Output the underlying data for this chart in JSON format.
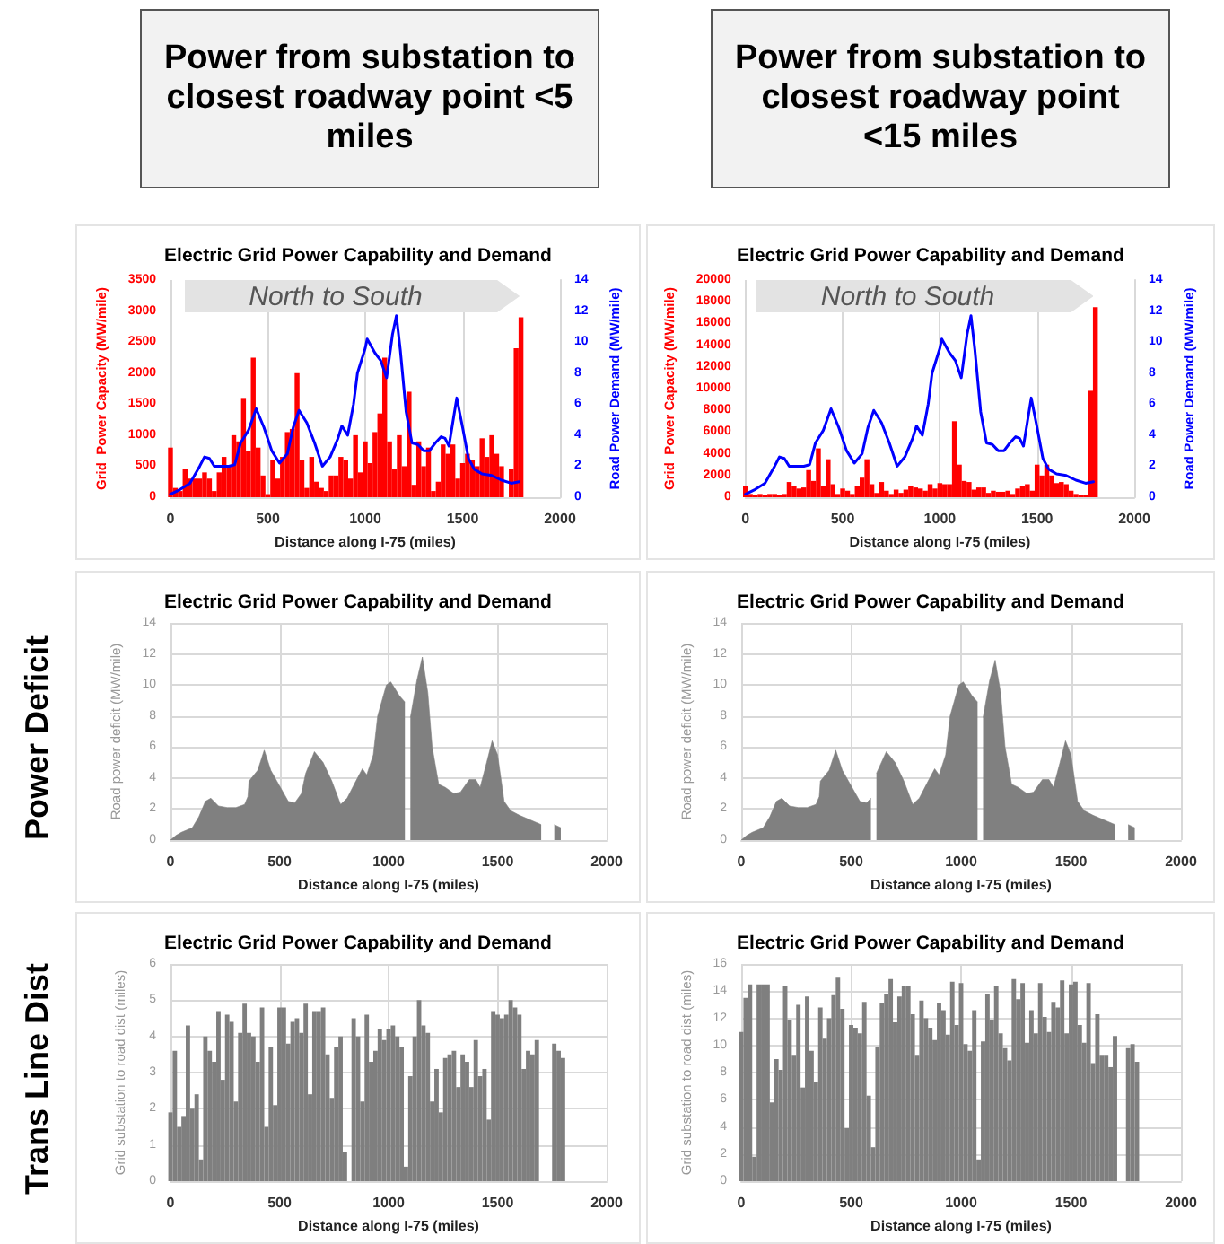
{
  "chart_data": [
    {
      "type": "bar",
      "title": "Electric Grid Power Capability and Demand",
      "subtitle": "Power from substation to closest roadway point <5 miles",
      "xlabel": "Distance along I-75 (miles)",
      "ylabel": "Grid  Power Capacity (MW/mile)",
      "y2label": "Road Power Demand (MW/mile)",
      "annotations": [
        "North to South"
      ],
      "xlim": [
        0,
        2000
      ],
      "xticks": [
        0,
        500,
        1000,
        1500,
        2000
      ],
      "ylim": [
        0,
        3500
      ],
      "yticks": [
        0,
        500,
        1000,
        1500,
        2000,
        2500,
        3000,
        3500
      ],
      "y2lim": [
        0,
        14
      ],
      "y2ticks": [
        0,
        2,
        4,
        6,
        8,
        10,
        12,
        14
      ],
      "grid": "x",
      "series": [
        {
          "color": "#ff0000",
          "x": [
            0,
            25,
            50,
            75,
            100,
            125,
            150,
            175,
            200,
            225,
            250,
            275,
            300,
            325,
            350,
            375,
            400,
            425,
            450,
            475,
            500,
            525,
            550,
            575,
            600,
            625,
            650,
            675,
            700,
            725,
            750,
            775,
            800,
            825,
            850,
            875,
            900,
            925,
            950,
            975,
            1000,
            1025,
            1050,
            1075,
            1100,
            1125,
            1150,
            1175,
            1200,
            1225,
            1250,
            1275,
            1300,
            1325,
            1350,
            1375,
            1400,
            1425,
            1450,
            1475,
            1500,
            1525,
            1550,
            1575,
            1600,
            1625,
            1650,
            1675,
            1700,
            1725,
            1750,
            1775,
            1800
          ],
          "values": [
            800,
            150,
            100,
            450,
            300,
            300,
            300,
            400,
            300,
            100,
            400,
            650,
            500,
            1000,
            900,
            1600,
            750,
            2250,
            800,
            350,
            50,
            600,
            300,
            650,
            1050,
            1100,
            2000,
            600,
            150,
            650,
            250,
            150,
            100,
            350,
            350,
            650,
            600,
            300,
            1000,
            400,
            900,
            550,
            1050,
            1350,
            2250,
            900,
            450,
            1000,
            500,
            1700,
            200,
            900,
            500,
            800,
            100,
            250,
            850,
            700,
            850,
            300,
            550,
            700,
            600,
            500,
            950,
            650,
            1000,
            700,
            500,
            0,
            450,
            2400,
            2900
          ]
        },
        {
          "type": "line",
          "axis": "y2",
          "color": "#0000ff",
          "x": [
            0,
            50,
            100,
            150,
            175,
            200,
            225,
            300,
            330,
            360,
            400,
            440,
            480,
            520,
            560,
            600,
            630,
            660,
            700,
            740,
            780,
            820,
            860,
            880,
            910,
            940,
            960,
            1000,
            1010,
            1050,
            1080,
            1110,
            1140,
            1160,
            1180,
            1210,
            1240,
            1270,
            1300,
            1330,
            1360,
            1390,
            1410,
            1430,
            1470,
            1500,
            1530,
            1560,
            1600,
            1650,
            1700,
            1750,
            1790
          ],
          "values": [
            0.2,
            0.5,
            0.9,
            2.0,
            2.6,
            2.5,
            2.0,
            2.0,
            2.1,
            3.5,
            4.3,
            5.7,
            4.5,
            3.0,
            2.2,
            2.8,
            4.5,
            5.6,
            4.8,
            3.5,
            2.0,
            2.6,
            3.8,
            4.6,
            4.0,
            6.0,
            8.0,
            9.6,
            10.2,
            9.3,
            8.8,
            7.7,
            10.5,
            11.7,
            9.5,
            5.5,
            3.5,
            3.4,
            3.0,
            3.0,
            3.5,
            3.9,
            3.8,
            3.3,
            6.4,
            4.5,
            2.5,
            1.8,
            1.5,
            1.4,
            1.1,
            0.9,
            1.0
          ]
        }
      ]
    },
    {
      "type": "bar",
      "title": "Electric Grid Power Capability and Demand",
      "subtitle": "Power from substation to closest roadway point <15 miles",
      "xlabel": "Distance along I-75 (miles)",
      "ylabel": "Grid  Power Capacity (MW/mile)",
      "y2label": "Road Power Demand (MW/mile)",
      "annotations": [
        "North to South"
      ],
      "xlim": [
        0,
        2000
      ],
      "xticks": [
        0,
        500,
        1000,
        1500,
        2000
      ],
      "ylim": [
        0,
        20000
      ],
      "yticks": [
        0,
        2000,
        4000,
        6000,
        8000,
        10000,
        12000,
        14000,
        16000,
        18000,
        20000
      ],
      "y2lim": [
        0,
        14
      ],
      "y2ticks": [
        0,
        2,
        4,
        6,
        8,
        10,
        12,
        14
      ],
      "grid": "x",
      "series": [
        {
          "color": "#ff0000",
          "x": [
            0,
            25,
            50,
            75,
            100,
            125,
            150,
            175,
            200,
            225,
            250,
            275,
            300,
            325,
            350,
            375,
            400,
            425,
            450,
            475,
            500,
            525,
            550,
            575,
            600,
            625,
            650,
            675,
            700,
            725,
            750,
            775,
            800,
            825,
            850,
            875,
            900,
            925,
            950,
            975,
            1000,
            1025,
            1050,
            1075,
            1100,
            1125,
            1150,
            1175,
            1200,
            1225,
            1250,
            1275,
            1300,
            1325,
            1350,
            1375,
            1400,
            1425,
            1450,
            1475,
            1500,
            1525,
            1550,
            1575,
            1600,
            1625,
            1650,
            1675,
            1700,
            1725,
            1750,
            1775,
            1800
          ],
          "values": [
            1000,
            300,
            200,
            300,
            200,
            300,
            300,
            200,
            300,
            1400,
            1000,
            800,
            900,
            2500,
            1500,
            4500,
            1000,
            3500,
            1200,
            300,
            800,
            600,
            300,
            1000,
            1800,
            3500,
            1200,
            400,
            1400,
            600,
            300,
            700,
            400,
            700,
            1000,
            900,
            800,
            600,
            1200,
            800,
            1300,
            1200,
            1200,
            7000,
            3000,
            1500,
            1400,
            700,
            900,
            900,
            400,
            600,
            500,
            500,
            600,
            300,
            800,
            1000,
            1200,
            600,
            3000,
            2000,
            3000,
            2000,
            1300,
            1400,
            1200,
            600,
            300,
            200,
            200,
            9800,
            17500
          ]
        },
        {
          "type": "line",
          "axis": "y2",
          "color": "#0000ff",
          "x": [
            0,
            50,
            100,
            150,
            175,
            200,
            225,
            300,
            330,
            360,
            400,
            440,
            480,
            520,
            560,
            600,
            630,
            660,
            700,
            740,
            780,
            820,
            860,
            880,
            910,
            940,
            960,
            1000,
            1010,
            1050,
            1080,
            1110,
            1140,
            1160,
            1180,
            1210,
            1240,
            1270,
            1300,
            1330,
            1360,
            1390,
            1410,
            1430,
            1470,
            1500,
            1530,
            1560,
            1600,
            1650,
            1700,
            1750,
            1790
          ],
          "values": [
            0.2,
            0.5,
            0.9,
            2.0,
            2.6,
            2.5,
            2.0,
            2.0,
            2.1,
            3.5,
            4.3,
            5.7,
            4.5,
            3.0,
            2.2,
            2.8,
            4.5,
            5.6,
            4.8,
            3.5,
            2.0,
            2.6,
            3.8,
            4.6,
            4.0,
            6.0,
            8.0,
            9.6,
            10.2,
            9.3,
            8.8,
            7.7,
            10.5,
            11.7,
            9.5,
            5.5,
            3.5,
            3.4,
            3.0,
            3.0,
            3.5,
            3.9,
            3.8,
            3.3,
            6.4,
            4.5,
            2.5,
            1.8,
            1.5,
            1.4,
            1.1,
            0.9,
            1.0
          ]
        }
      ]
    },
    {
      "type": "area",
      "title": "Electric Grid Power Capability and Demand",
      "xlabel": "Distance along I-75 (miles)",
      "ylabel": "Road power deficit (MW/mile)",
      "annotations": [
        "Power Deficit"
      ],
      "xlim": [
        0,
        2000
      ],
      "xticks": [
        0,
        500,
        1000,
        1500,
        2000
      ],
      "ylim": [
        0,
        14
      ],
      "yticks": [
        0,
        2,
        4,
        6,
        8,
        10,
        12,
        14
      ],
      "grid": true,
      "series": [
        {
          "color": "#808080",
          "x": [
            0,
            25,
            50,
            100,
            130,
            160,
            185,
            220,
            260,
            300,
            340,
            355,
            360,
            400,
            430,
            460,
            500,
            540,
            570,
            600,
            620,
            660,
            700,
            740,
            780,
            810,
            850,
            880,
            900,
            930,
            950,
            990,
            1010,
            1050,
            1075,
            1090,
            1100,
            1130,
            1155,
            1180,
            1200,
            1230,
            1260,
            1300,
            1330,
            1370,
            1400,
            1420,
            1450,
            1475,
            1500,
            1530,
            1560,
            1600,
            1650,
            1700
          ],
          "values": [
            0,
            0.3,
            0.5,
            0.8,
            1.5,
            2.5,
            2.7,
            2.2,
            2.1,
            2.1,
            2.3,
            2.8,
            3.8,
            4.5,
            5.8,
            4.5,
            3.5,
            2.5,
            2.4,
            3.0,
            4.3,
            5.7,
            5.0,
            3.8,
            2.3,
            2.7,
            3.8,
            4.6,
            4.2,
            5.5,
            8.0,
            10.0,
            10.2,
            9.3,
            8.9,
            null,
            7.9,
            10.3,
            11.8,
            9.5,
            6.0,
            3.6,
            3.4,
            3.0,
            3.1,
            3.9,
            3.9,
            3.4,
            5.0,
            6.4,
            5.5,
            2.5,
            1.9,
            1.6,
            1.3,
            1.0
          ]
        },
        {
          "color": "#808080",
          "x": [
            1760,
            1790
          ],
          "values": [
            1.0,
            0.8
          ]
        }
      ]
    },
    {
      "type": "area",
      "title": "Electric Grid Power Capability and Demand",
      "xlabel": "Distance along I-75 (miles)",
      "ylabel": "Road power deficit (MW/mile)",
      "xlim": [
        0,
        2000
      ],
      "xticks": [
        0,
        500,
        1000,
        1500,
        2000
      ],
      "ylim": [
        0,
        14
      ],
      "yticks": [
        0,
        2,
        4,
        6,
        8,
        10,
        12,
        14
      ],
      "grid": true,
      "series": [
        {
          "color": "#808080",
          "x": [
            0,
            25,
            50,
            100,
            130,
            160,
            185,
            220,
            260,
            300,
            340,
            355,
            360,
            400,
            430,
            460,
            500,
            540,
            570,
            590,
            600,
            615,
            660,
            700,
            740,
            780,
            810,
            850,
            880,
            900,
            930,
            950,
            990,
            1010,
            1050,
            1075,
            1090,
            1100,
            1130,
            1155,
            1180,
            1200,
            1230,
            1260,
            1300,
            1330,
            1370,
            1400,
            1420,
            1450,
            1475,
            1500,
            1530,
            1560,
            1600,
            1650,
            1700
          ],
          "values": [
            0,
            0.3,
            0.5,
            0.8,
            1.5,
            2.5,
            2.7,
            2.2,
            2.1,
            2.1,
            2.3,
            2.8,
            3.8,
            4.5,
            5.8,
            4.5,
            3.5,
            2.5,
            2.4,
            2.7,
            null,
            4.3,
            5.7,
            5.0,
            3.8,
            2.3,
            2.7,
            3.8,
            4.6,
            4.2,
            5.5,
            8.0,
            10.0,
            10.2,
            9.3,
            8.9,
            null,
            7.9,
            10.3,
            11.6,
            9.5,
            6.0,
            3.6,
            3.4,
            3.0,
            3.1,
            3.9,
            3.9,
            3.4,
            5.0,
            6.4,
            5.5,
            2.5,
            1.9,
            1.6,
            1.3,
            1.0
          ]
        },
        {
          "color": "#808080",
          "x": [
            1760,
            1790
          ],
          "values": [
            1.0,
            0.8
          ]
        }
      ]
    },
    {
      "type": "bar",
      "title": "Electric Grid Power Capability and Demand",
      "xlabel": "Distance along I-75 (miles)",
      "ylabel": "Grid substation to road dist (miles)",
      "annotations": [
        "Trans Line Dist"
      ],
      "xlim": [
        0,
        2000
      ],
      "xticks": [
        0,
        500,
        1000,
        1500,
        2000
      ],
      "ylim": [
        0,
        6
      ],
      "yticks": [
        0,
        1,
        2,
        3,
        4,
        5,
        6
      ],
      "grid": true,
      "x": [
        0,
        20,
        40,
        60,
        80,
        100,
        120,
        140,
        160,
        180,
        200,
        220,
        240,
        260,
        280,
        300,
        320,
        340,
        360,
        380,
        400,
        420,
        440,
        460,
        480,
        500,
        520,
        540,
        560,
        580,
        600,
        620,
        640,
        660,
        680,
        700,
        720,
        740,
        760,
        780,
        800,
        820,
        840,
        860,
        880,
        900,
        920,
        940,
        960,
        980,
        1000,
        1020,
        1040,
        1060,
        1080,
        1100,
        1120,
        1140,
        1160,
        1180,
        1200,
        1220,
        1240,
        1260,
        1280,
        1300,
        1320,
        1340,
        1360,
        1380,
        1400,
        1420,
        1440,
        1460,
        1480,
        1500,
        1520,
        1540,
        1560,
        1580,
        1600,
        1620,
        1640,
        1660,
        1680,
        1700,
        1720,
        1740,
        1760,
        1780,
        1800
      ],
      "series": [
        {
          "color": "#7f7f7f",
          "values": [
            1.9,
            3.6,
            1.5,
            1.8,
            4.3,
            2.0,
            2.4,
            0.6,
            4.0,
            3.6,
            3.3,
            4.7,
            2.8,
            4.6,
            4.4,
            2.2,
            4.1,
            4.9,
            4.1,
            4.0,
            3.3,
            4.8,
            1.5,
            3.7,
            2.1,
            4.8,
            4.8,
            3.8,
            4.4,
            4.5,
            4.1,
            4.9,
            2.4,
            4.7,
            4.7,
            4.8,
            3.5,
            2.3,
            3.7,
            4.0,
            0.8,
            0,
            4.5,
            4.0,
            2.2,
            4.6,
            3.3,
            3.6,
            4.2,
            3.9,
            4.2,
            4.3,
            4.0,
            3.7,
            0.4,
            2.9,
            4.0,
            5.0,
            4.3,
            4.1,
            2.2,
            3.1,
            1.9,
            3.4,
            3.5,
            3.6,
            2.6,
            3.5,
            3.3,
            2.6,
            3.9,
            2.9,
            3.1,
            1.7,
            4.7,
            4.6,
            4.5,
            4.6,
            5.0,
            4.8,
            4.6,
            3.1,
            3.6,
            3.5,
            3.9,
            0,
            0,
            0,
            3.8,
            3.6,
            3.4
          ]
        }
      ]
    },
    {
      "type": "bar",
      "title": "Electric Grid Power Capability and Demand",
      "xlabel": "Distance along I-75 (miles)",
      "ylabel": "Grid substation to road dist (miles)",
      "xlim": [
        0,
        2000
      ],
      "xticks": [
        0,
        500,
        1000,
        1500,
        2000
      ],
      "ylim": [
        0,
        16
      ],
      "yticks": [
        0,
        2,
        4,
        6,
        8,
        10,
        12,
        14,
        16
      ],
      "grid": true,
      "x": [
        0,
        20,
        40,
        60,
        80,
        100,
        120,
        140,
        160,
        180,
        200,
        220,
        240,
        260,
        280,
        300,
        320,
        340,
        360,
        380,
        400,
        420,
        440,
        460,
        480,
        500,
        520,
        540,
        560,
        580,
        600,
        620,
        640,
        660,
        680,
        700,
        720,
        740,
        760,
        780,
        800,
        820,
        840,
        860,
        880,
        900,
        920,
        940,
        960,
        980,
        1000,
        1020,
        1040,
        1060,
        1080,
        1100,
        1120,
        1140,
        1160,
        1180,
        1200,
        1220,
        1240,
        1260,
        1280,
        1300,
        1320,
        1340,
        1360,
        1380,
        1400,
        1420,
        1440,
        1460,
        1480,
        1500,
        1520,
        1540,
        1560,
        1580,
        1600,
        1620,
        1640,
        1660,
        1680,
        1700,
        1720,
        1740,
        1760,
        1780,
        1800
      ],
      "series": [
        {
          "color": "#7f7f7f",
          "values": [
            11,
            13.5,
            14.5,
            1.8,
            14.5,
            14.5,
            14.5,
            5.8,
            9.0,
            8.2,
            14.4,
            11.9,
            9.3,
            13.0,
            6.9,
            13.6,
            9.6,
            7.3,
            12.8,
            10.5,
            12.0,
            13.7,
            15.0,
            12.7,
            3.9,
            11.5,
            11.3,
            10.9,
            13.2,
            6.3,
            2.5,
            9.9,
            13.1,
            13.8,
            14.9,
            11.7,
            13.6,
            14.4,
            14.4,
            12.3,
            9.3,
            13.3,
            12.0,
            11.3,
            10.4,
            13.1,
            12.6,
            10.8,
            14.7,
            11.5,
            14.6,
            10.1,
            9.6,
            12.6,
            1.6,
            10.3,
            13.8,
            11.9,
            14.4,
            10.9,
            9.8,
            8.9,
            14.9,
            13.4,
            14.6,
            10.2,
            12.6,
            10.9,
            14.6,
            12.1,
            11.0,
            13.2,
            12.8,
            14.8,
            10.9,
            14.5,
            14.7,
            11.5,
            10.2,
            14.6,
            8.7,
            12.3,
            9.3,
            9.3,
            8.4,
            10.7,
            0,
            0,
            9.8,
            10.1,
            8.8
          ]
        }
      ]
    }
  ]
}
